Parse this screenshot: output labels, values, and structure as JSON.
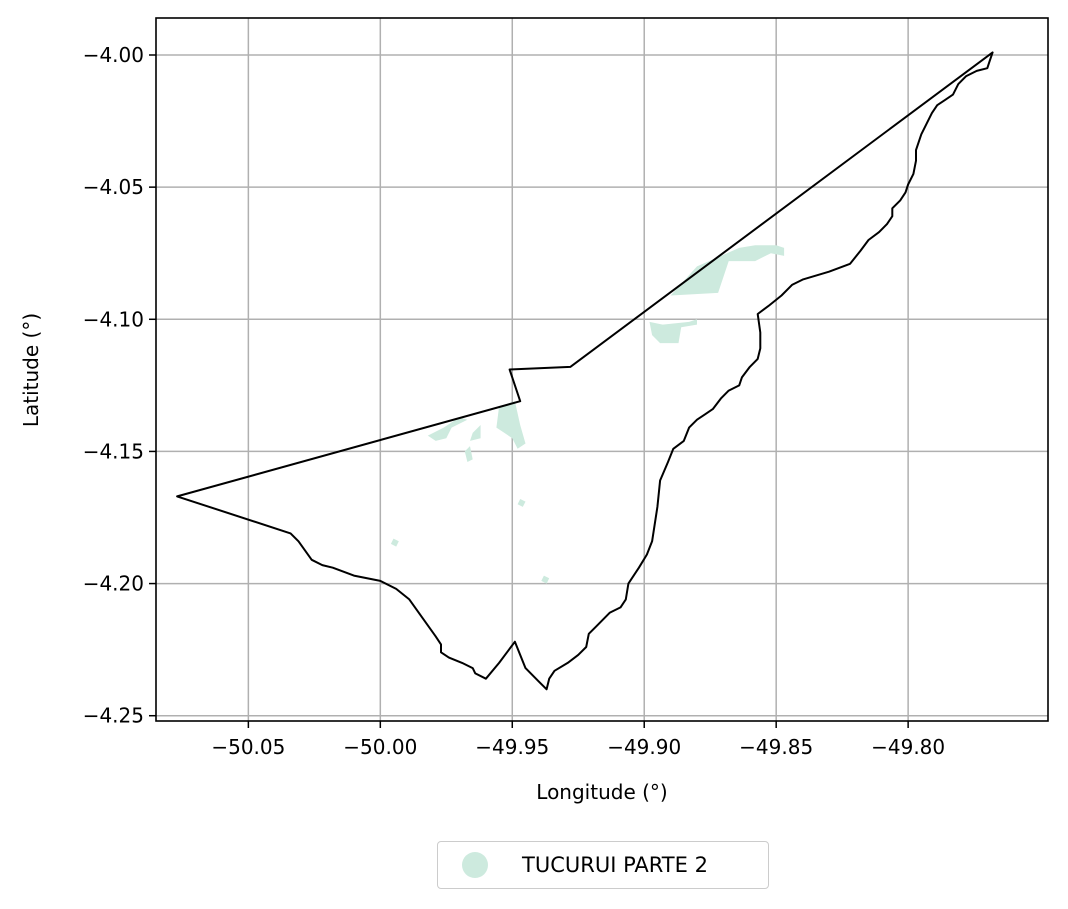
{
  "chart_data": {
    "type": "map",
    "xlabel": "Longitude (°)",
    "ylabel": "Latitude (°)",
    "xlim": [
      -50.085,
      -49.747
    ],
    "ylim": [
      -4.252,
      -3.986
    ],
    "grid": true,
    "x_ticks": [
      {
        "value": -50.05,
        "label": "−50.05"
      },
      {
        "value": -50.0,
        "label": "−50.00"
      },
      {
        "value": -49.95,
        "label": "−49.95"
      },
      {
        "value": -49.9,
        "label": "−49.90"
      },
      {
        "value": -49.85,
        "label": "−49.85"
      },
      {
        "value": -49.8,
        "label": "−49.80"
      }
    ],
    "y_ticks": [
      {
        "value": -4.0,
        "label": "−4.00"
      },
      {
        "value": -4.05,
        "label": "−4.05"
      },
      {
        "value": -4.1,
        "label": "−4.10"
      },
      {
        "value": -4.15,
        "label": "−4.15"
      },
      {
        "value": -4.2,
        "label": "−4.20"
      },
      {
        "value": -4.25,
        "label": "−4.25"
      }
    ],
    "boundary": [
      [
        -49.768,
        -3.999
      ],
      [
        -49.928,
        -4.118
      ],
      [
        -49.951,
        -4.119
      ],
      [
        -49.947,
        -4.131
      ],
      [
        -50.077,
        -4.167
      ],
      [
        -50.034,
        -4.181
      ],
      [
        -50.031,
        -4.184
      ],
      [
        -50.026,
        -4.191
      ],
      [
        -50.022,
        -4.193
      ],
      [
        -50.018,
        -4.194
      ],
      [
        -50.01,
        -4.197
      ],
      [
        -50.0,
        -4.199
      ],
      [
        -49.994,
        -4.202
      ],
      [
        -49.989,
        -4.206
      ],
      [
        -49.984,
        -4.213
      ],
      [
        -49.979,
        -4.22
      ],
      [
        -49.977,
        -4.223
      ],
      [
        -49.977,
        -4.226
      ],
      [
        -49.974,
        -4.228
      ],
      [
        -49.969,
        -4.23
      ],
      [
        -49.965,
        -4.232
      ],
      [
        -49.964,
        -4.234
      ],
      [
        -49.96,
        -4.236
      ],
      [
        -49.955,
        -4.23
      ],
      [
        -49.949,
        -4.222
      ],
      [
        -49.945,
        -4.232
      ],
      [
        -49.94,
        -4.237
      ],
      [
        -49.937,
        -4.24
      ],
      [
        -49.936,
        -4.236
      ],
      [
        -49.934,
        -4.233
      ],
      [
        -49.929,
        -4.23
      ],
      [
        -49.925,
        -4.227
      ],
      [
        -49.922,
        -4.224
      ],
      [
        -49.921,
        -4.219
      ],
      [
        -49.918,
        -4.216
      ],
      [
        -49.913,
        -4.211
      ],
      [
        -49.909,
        -4.209
      ],
      [
        -49.907,
        -4.206
      ],
      [
        -49.906,
        -4.2
      ],
      [
        -49.902,
        -4.194
      ],
      [
        -49.899,
        -4.189
      ],
      [
        -49.897,
        -4.184
      ],
      [
        -49.895,
        -4.171
      ],
      [
        -49.894,
        -4.161
      ],
      [
        -49.891,
        -4.154
      ],
      [
        -49.889,
        -4.149
      ],
      [
        -49.885,
        -4.146
      ],
      [
        -49.883,
        -4.141
      ],
      [
        -49.88,
        -4.138
      ],
      [
        -49.877,
        -4.136
      ],
      [
        -49.874,
        -4.134
      ],
      [
        -49.871,
        -4.13
      ],
      [
        -49.868,
        -4.127
      ],
      [
        -49.864,
        -4.125
      ],
      [
        -49.863,
        -4.122
      ],
      [
        -49.86,
        -4.118
      ],
      [
        -49.857,
        -4.115
      ],
      [
        -49.856,
        -4.111
      ],
      [
        -49.856,
        -4.105
      ],
      [
        -49.857,
        -4.098
      ],
      [
        -49.853,
        -4.095
      ],
      [
        -49.848,
        -4.091
      ],
      [
        -49.844,
        -4.087
      ],
      [
        -49.84,
        -4.085
      ],
      [
        -49.83,
        -4.082
      ],
      [
        -49.822,
        -4.079
      ],
      [
        -49.818,
        -4.074
      ],
      [
        -49.815,
        -4.07
      ],
      [
        -49.811,
        -4.067
      ],
      [
        -49.808,
        -4.064
      ],
      [
        -49.806,
        -4.061
      ],
      [
        -49.806,
        -4.058
      ],
      [
        -49.803,
        -4.055
      ],
      [
        -49.801,
        -4.052
      ],
      [
        -49.8,
        -4.049
      ],
      [
        -49.798,
        -4.045
      ],
      [
        -49.797,
        -4.04
      ],
      [
        -49.797,
        -4.036
      ],
      [
        -49.795,
        -4.03
      ],
      [
        -49.793,
        -4.026
      ],
      [
        -49.791,
        -4.022
      ],
      [
        -49.789,
        -4.019
      ],
      [
        -49.786,
        -4.017
      ],
      [
        -49.783,
        -4.015
      ],
      [
        -49.781,
        -4.011
      ],
      [
        -49.778,
        -4.008
      ],
      [
        -49.774,
        -4.006
      ],
      [
        -49.77,
        -4.005
      ],
      [
        -49.769,
        -4.002
      ],
      [
        -49.768,
        -3.999
      ]
    ],
    "series": [
      {
        "name": "TUCURUI PARTE 2",
        "color": "#cdeade",
        "polygons": [
          [
            [
              -49.88,
              -4.08
            ],
            [
              -49.864,
              -4.073
            ],
            [
              -49.858,
              -4.072
            ],
            [
              -49.85,
              -4.072
            ],
            [
              -49.847,
              -4.073
            ],
            [
              -49.847,
              -4.076
            ],
            [
              -49.852,
              -4.075
            ],
            [
              -49.858,
              -4.078
            ],
            [
              -49.868,
              -4.078
            ],
            [
              -49.872,
              -4.09
            ],
            [
              -49.89,
              -4.091
            ]
          ],
          [
            [
              -49.898,
              -4.101
            ],
            [
              -49.893,
              -4.102
            ],
            [
              -49.883,
              -4.101
            ],
            [
              -49.88,
              -4.1
            ],
            [
              -49.88,
              -4.102
            ],
            [
              -49.886,
              -4.103
            ],
            [
              -49.887,
              -4.109
            ],
            [
              -49.894,
              -4.109
            ],
            [
              -49.897,
              -4.106
            ]
          ],
          [
            [
              -49.955,
              -4.133
            ],
            [
              -49.949,
              -4.131
            ],
            [
              -49.947,
              -4.14
            ],
            [
              -49.945,
              -4.147
            ],
            [
              -49.948,
              -4.149
            ],
            [
              -49.95,
              -4.145
            ],
            [
              -49.953,
              -4.143
            ],
            [
              -49.956,
              -4.141
            ]
          ],
          [
            [
              -49.967,
              -4.138
            ],
            [
              -49.973,
              -4.141
            ],
            [
              -49.975,
              -4.145
            ],
            [
              -49.979,
              -4.146
            ],
            [
              -49.982,
              -4.144
            ],
            [
              -49.976,
              -4.141
            ],
            [
              -49.97,
              -4.137
            ]
          ],
          [
            [
              -49.962,
              -4.14
            ],
            [
              -49.965,
              -4.143
            ],
            [
              -49.966,
              -4.146
            ],
            [
              -49.962,
              -4.145
            ]
          ],
          [
            [
              -49.966,
              -4.148
            ],
            [
              -49.968,
              -4.15
            ],
            [
              -49.967,
              -4.154
            ],
            [
              -49.965,
              -4.153
            ]
          ],
          [
            [
              -49.947,
              -4.168
            ],
            [
              -49.945,
              -4.169
            ],
            [
              -49.946,
              -4.171
            ],
            [
              -49.948,
              -4.17
            ]
          ],
          [
            [
              -49.995,
              -4.183
            ],
            [
              -49.993,
              -4.184
            ],
            [
              -49.994,
              -4.186
            ],
            [
              -49.996,
              -4.185
            ]
          ],
          [
            [
              -49.938,
              -4.197
            ],
            [
              -49.936,
              -4.198
            ],
            [
              -49.937,
              -4.2
            ],
            [
              -49.939,
              -4.199
            ]
          ]
        ]
      }
    ],
    "legend": {
      "position": "bottom-center",
      "entries": [
        "TUCURUI PARTE 2"
      ]
    }
  }
}
